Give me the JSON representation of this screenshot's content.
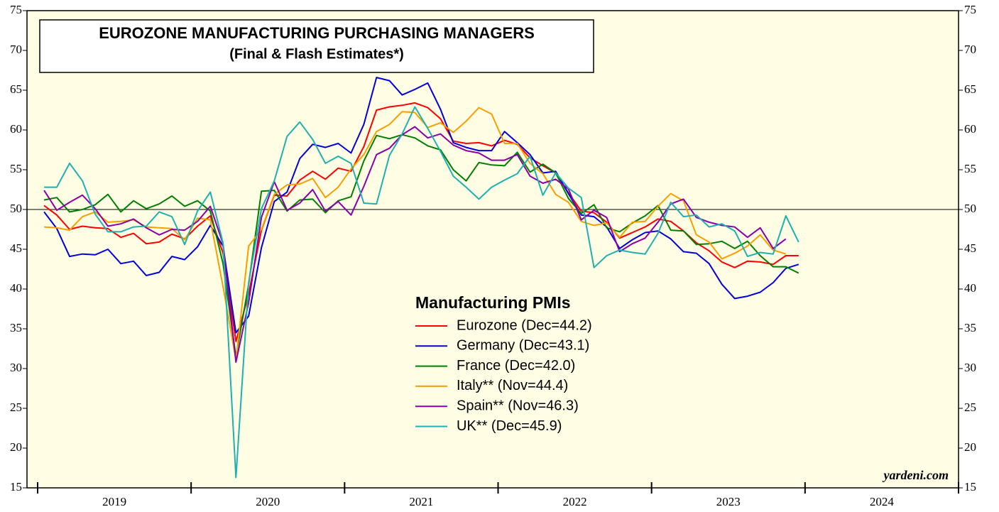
{
  "chart_data": {
    "type": "line",
    "title": "EUROZONE MANUFACTURING PURCHASING MANAGERS",
    "subtitle": "(Final & Flash Estimates*)",
    "legend_title": "Manufacturing PMIs",
    "source": "yardeni.com",
    "x": [
      2019.042,
      2019.125,
      2019.208,
      2019.292,
      2019.375,
      2019.458,
      2019.542,
      2019.625,
      2019.708,
      2019.792,
      2019.875,
      2019.958,
      2020.042,
      2020.125,
      2020.208,
      2020.292,
      2020.375,
      2020.458,
      2020.542,
      2020.625,
      2020.708,
      2020.792,
      2020.875,
      2020.958,
      2021.042,
      2021.125,
      2021.208,
      2021.292,
      2021.375,
      2021.458,
      2021.542,
      2021.625,
      2021.708,
      2021.792,
      2021.875,
      2021.958,
      2022.042,
      2022.125,
      2022.208,
      2022.292,
      2022.375,
      2022.458,
      2022.542,
      2022.625,
      2022.708,
      2022.792,
      2022.875,
      2022.958,
      2023.042,
      2023.125,
      2023.208,
      2023.292,
      2023.375,
      2023.458,
      2023.542,
      2023.625,
      2023.708,
      2023.792,
      2023.875,
      2023.958
    ],
    "xlim": [
      2019,
      2025
    ],
    "xticks": [
      2019,
      2020,
      2021,
      2022,
      2023,
      2024,
      2025
    ],
    "year_labels": [
      "2019",
      "2020",
      "2021",
      "2022",
      "2023",
      "2024"
    ],
    "ylim": [
      15,
      75
    ],
    "yticks": [
      15,
      20,
      25,
      30,
      35,
      40,
      45,
      50,
      55,
      60,
      65,
      70,
      75
    ],
    "hline": 50,
    "series": [
      {
        "name": "Eurozone (Dec=44.2)",
        "color": "#ff0000",
        "values": [
          50.5,
          49.3,
          47.5,
          47.9,
          47.7,
          47.6,
          46.5,
          47.0,
          45.7,
          45.9,
          46.9,
          46.3,
          47.9,
          49.2,
          44.5,
          33.4,
          39.4,
          47.4,
          51.8,
          51.7,
          53.7,
          54.8,
          53.8,
          55.2,
          54.8,
          57.9,
          62.5,
          62.9,
          63.1,
          63.4,
          62.8,
          61.4,
          58.6,
          58.3,
          58.4,
          58.0,
          58.7,
          58.2,
          56.5,
          55.5,
          54.6,
          52.1,
          49.8,
          49.6,
          48.4,
          46.4,
          47.1,
          47.8,
          48.8,
          48.5,
          47.3,
          45.8,
          44.8,
          43.4,
          42.7,
          43.5,
          43.4,
          43.1,
          44.2,
          44.2
        ]
      },
      {
        "name": "Germany (Dec=43.1)",
        "color": "#0000dd",
        "values": [
          49.7,
          47.6,
          44.1,
          44.4,
          44.3,
          45.0,
          43.2,
          43.5,
          41.7,
          42.1,
          44.1,
          43.7,
          45.3,
          48.0,
          45.4,
          34.5,
          36.6,
          45.2,
          51.0,
          52.2,
          56.4,
          58.2,
          57.8,
          58.3,
          57.1,
          60.7,
          66.6,
          66.2,
          64.4,
          65.1,
          65.9,
          62.6,
          58.4,
          57.8,
          57.4,
          57.4,
          59.8,
          58.4,
          56.9,
          54.6,
          54.8,
          52.0,
          49.3,
          49.1,
          47.8,
          45.1,
          46.2,
          47.1,
          47.3,
          46.3,
          44.7,
          44.5,
          43.2,
          40.6,
          38.8,
          39.1,
          39.6,
          40.8,
          42.6,
          43.1
        ]
      },
      {
        "name": "France (Dec=42.0)",
        "color": "#007f00",
        "values": [
          51.2,
          51.5,
          49.7,
          50.0,
          50.6,
          51.9,
          49.7,
          51.1,
          50.1,
          50.7,
          51.7,
          50.4,
          51.1,
          49.8,
          43.2,
          31.5,
          40.6,
          52.3,
          52.4,
          49.8,
          51.2,
          51.3,
          49.6,
          51.1,
          51.6,
          56.1,
          59.3,
          58.9,
          59.4,
          59.0,
          58.0,
          57.5,
          55.0,
          53.6,
          55.9,
          55.6,
          55.5,
          57.2,
          54.7,
          55.7,
          54.6,
          51.4,
          49.5,
          50.6,
          47.7,
          47.2,
          48.3,
          49.2,
          50.5,
          47.4,
          47.3,
          45.6,
          45.7,
          46.0,
          45.1,
          46.0,
          44.2,
          42.8,
          42.8,
          42.0
        ]
      },
      {
        "name": "Italy** (Nov=44.4)",
        "color": "#f5a000",
        "values": [
          47.8,
          47.7,
          47.4,
          49.1,
          49.7,
          48.4,
          48.5,
          48.7,
          47.8,
          47.7,
          47.6,
          46.2,
          48.9,
          48.7,
          40.3,
          31.1,
          45.4,
          47.5,
          51.9,
          53.1,
          53.2,
          53.9,
          51.5,
          52.8,
          55.1,
          56.9,
          59.8,
          60.7,
          62.3,
          62.2,
          60.3,
          60.9,
          59.7,
          61.1,
          62.8,
          62.0,
          58.3,
          58.3,
          55.8,
          54.5,
          51.9,
          50.9,
          48.5,
          48.0,
          48.3,
          46.5,
          48.4,
          48.5,
          50.4,
          52.0,
          51.1,
          46.8,
          45.9,
          43.8,
          44.5,
          45.4,
          46.8,
          44.9,
          44.4,
          null
        ]
      },
      {
        "name": "Spain** (Nov=46.3)",
        "color": "#8b00a8",
        "values": [
          52.4,
          49.9,
          50.9,
          51.8,
          50.1,
          47.9,
          48.2,
          48.8,
          47.7,
          46.8,
          47.5,
          47.4,
          48.5,
          50.4,
          45.7,
          30.8,
          38.3,
          49.0,
          53.5,
          49.9,
          50.8,
          52.5,
          49.8,
          51.0,
          49.3,
          52.9,
          56.9,
          57.7,
          59.4,
          60.4,
          59.0,
          59.5,
          58.1,
          57.4,
          57.1,
          56.2,
          56.2,
          56.9,
          54.2,
          53.3,
          53.8,
          52.6,
          48.7,
          49.9,
          49.0,
          44.7,
          45.7,
          46.4,
          48.4,
          50.7,
          51.3,
          49.0,
          48.4,
          48.0,
          47.8,
          46.5,
          47.7,
          45.1,
          46.3,
          null
        ]
      },
      {
        "name": "UK** (Dec=45.9)",
        "color": "#1fb0b0",
        "values": [
          52.8,
          52.8,
          55.8,
          53.6,
          49.4,
          47.2,
          47.2,
          47.8,
          47.9,
          49.7,
          49.1,
          45.6,
          49.8,
          52.2,
          45.8,
          16.3,
          40.8,
          50.1,
          53.6,
          59.2,
          61.0,
          58.8,
          55.8,
          56.7,
          55.8,
          50.8,
          50.7,
          56.8,
          59.5,
          62.9,
          60.2,
          57.3,
          54.2,
          52.8,
          51.3,
          52.8,
          53.7,
          54.5,
          56.7,
          51.8,
          54.6,
          52.7,
          51.5,
          42.7,
          44.2,
          44.9,
          44.6,
          44.4,
          47.0,
          50.9,
          49.1,
          49.3,
          47.8,
          48.2,
          47.3,
          44.1,
          44.6,
          44.4,
          49.2,
          45.9
        ]
      }
    ]
  }
}
